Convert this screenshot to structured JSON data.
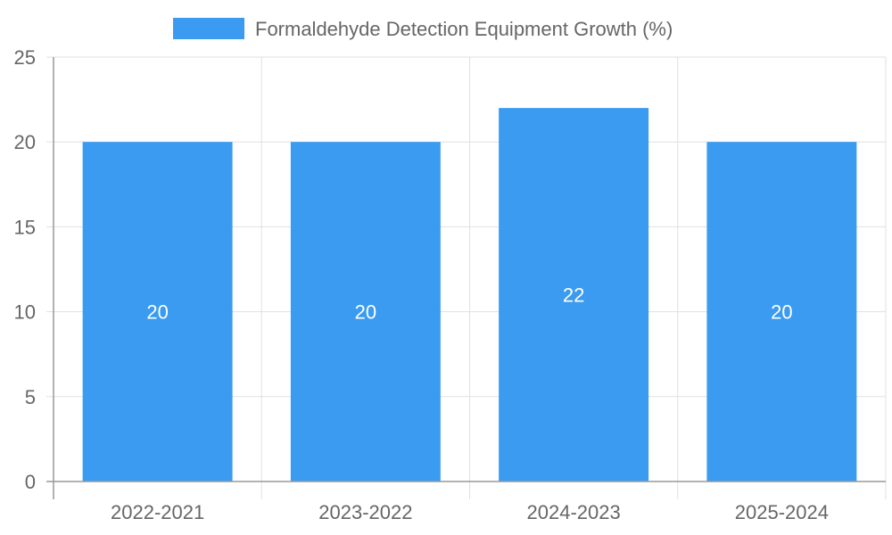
{
  "chart_data": {
    "type": "bar",
    "title": "",
    "xlabel": "",
    "ylabel": "",
    "categories": [
      "2022-2021",
      "2023-2022",
      "2024-2023",
      "2025-2024"
    ],
    "series": [
      {
        "name": "Formaldehyde Detection Equipment Growth (%)",
        "values": [
          20,
          20,
          22,
          20
        ],
        "color": "#3a9bf0"
      }
    ],
    "ylim": [
      0,
      25
    ],
    "yticks": [
      0,
      5,
      10,
      15,
      20,
      25
    ],
    "grid": true,
    "legend_position": "top-center",
    "data_labels": true
  }
}
